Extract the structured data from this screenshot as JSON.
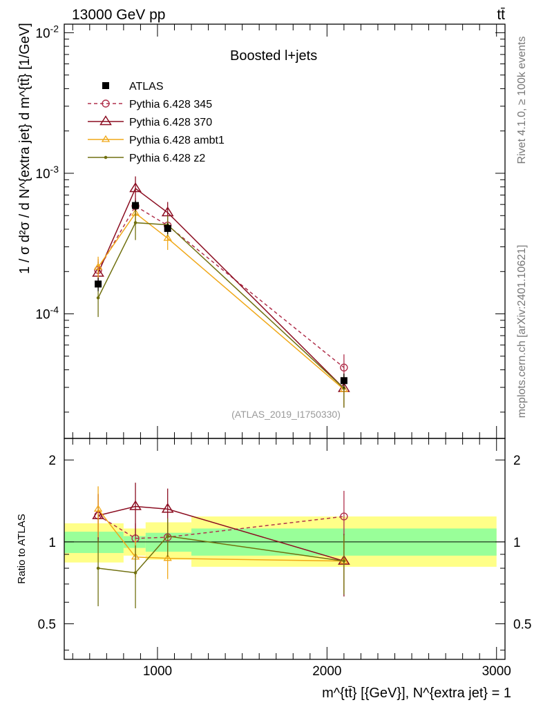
{
  "header": {
    "left_title": "13000 GeV pp",
    "right_title": "tt̄"
  },
  "side_labels": {
    "rivet": "Rivet 4.1.0, ≥ 100k events",
    "mcplots": "mcplots.cern.ch [arXiv:2401.10621]"
  },
  "chart_data": [
    {
      "type": "line",
      "panel": "main",
      "title": "Boosted l+jets",
      "analysis_label": "(ATLAS_2019_I1750330)",
      "ylabel": "1 / σ d²σ / d N^{extra jet} d m^{tt̄} [1/GeV]",
      "xlabel": "m^{tt̄} [{GeV}], N^{extra jet} = 1",
      "yscale": "log",
      "xlim": [
        450,
        3050
      ],
      "ylim": [
        1.3e-05,
        0.0115
      ],
      "yticks": [
        {
          "value": 0.0001,
          "label": "10^-4"
        },
        {
          "value": 0.001,
          "label": "10^-3"
        },
        {
          "value": 0.01,
          "label": "10^-2"
        }
      ],
      "data_points": {
        "name": "ATLAS",
        "x": [
          650,
          870,
          1060,
          2100
        ],
        "xerr_lo": [
          200,
          70,
          110,
          900
        ],
        "xerr_hi": [
          150,
          60,
          140,
          900
        ],
        "y": [
          0.000163,
          0.00059,
          0.000405,
          3.35e-05
        ],
        "yerr": [
          1.8e-05,
          5e-05,
          3.5e-05,
          4e-06
        ]
      },
      "series": [
        {
          "name": "Pythia 6.428 345",
          "color": "#b0304b",
          "dash": "5,4",
          "marker": "circle",
          "x": [
            650,
            870,
            1060,
            2100
          ],
          "y": [
            0.000205,
            0.000585,
            0.000425,
            4.15e-05
          ],
          "yerr": [
            4e-05,
            8e-05,
            6e-05,
            1e-05
          ]
        },
        {
          "name": "Pythia 6.428 370",
          "color": "#8b0d21",
          "dash": "",
          "marker": "triangle",
          "x": [
            650,
            870,
            1060,
            2100
          ],
          "y": [
            0.000195,
            0.00078,
            0.000525,
            2.95e-05
          ],
          "yerr": [
            4e-05,
            0.00017,
            0.0001,
            8e-06
          ]
        },
        {
          "name": "Pythia 6.428 ambt1",
          "color": "#f0a818",
          "dash": "",
          "marker": "triangle-small",
          "x": [
            650,
            870,
            1060,
            2100
          ],
          "y": [
            0.000215,
            0.00052,
            0.000345,
            2.9e-05
          ],
          "yerr": [
            4e-05,
            8e-05,
            6e-05,
            7e-06
          ]
        },
        {
          "name": "Pythia 6.428 z2",
          "color": "#707010",
          "dash": "",
          "marker": "dot",
          "x": [
            650,
            870,
            1060,
            2100
          ],
          "y": [
            0.00013,
            0.000445,
            0.00043,
            2.95e-05
          ],
          "yerr": [
            3.5e-05,
            0.00011,
            7e-05,
            8e-06
          ]
        }
      ]
    },
    {
      "type": "line",
      "panel": "ratio",
      "ylabel": "Ratio to ATLAS",
      "xlim": [
        450,
        3050
      ],
      "ylim": [
        0.37,
        2.4
      ],
      "yticks": [
        {
          "value": 0.5,
          "label": "0.5"
        },
        {
          "value": 1,
          "label": "1"
        },
        {
          "value": 2,
          "label": "2"
        }
      ],
      "xticks": [
        {
          "value": 1000,
          "label": "1000"
        },
        {
          "value": 2000,
          "label": "2000"
        },
        {
          "value": 3000,
          "label": "3000"
        }
      ],
      "bands": [
        {
          "x0": 450,
          "x1": 800,
          "yellow": [
            0.84,
            1.17
          ],
          "green": [
            0.91,
            1.09
          ]
        },
        {
          "x0": 800,
          "x1": 930,
          "yellow": [
            0.89,
            1.12
          ],
          "green": [
            0.95,
            1.05
          ]
        },
        {
          "x0": 930,
          "x1": 1200,
          "yellow": [
            0.86,
            1.18
          ],
          "green": [
            0.92,
            1.08
          ]
        },
        {
          "x0": 1200,
          "x1": 3000,
          "yellow": [
            0.81,
            1.24
          ],
          "green": [
            0.89,
            1.12
          ]
        }
      ],
      "series": [
        {
          "name": "Pythia 6.428 345",
          "x": [
            650,
            870,
            1060,
            2100
          ],
          "y": [
            1.25,
            1.03,
            1.04,
            1.24
          ],
          "yerr": [
            0.25,
            0.14,
            0.14,
            0.3
          ]
        },
        {
          "name": "Pythia 6.428 370",
          "x": [
            650,
            870,
            1060,
            2100
          ],
          "y": [
            1.25,
            1.35,
            1.32,
            0.85
          ],
          "yerr": [
            0.25,
            0.3,
            0.25,
            0.22
          ]
        },
        {
          "name": "Pythia 6.428 ambt1",
          "x": [
            650,
            870,
            1060,
            2100
          ],
          "y": [
            1.32,
            0.88,
            0.87,
            0.85
          ],
          "yerr": [
            0.28,
            0.14,
            0.14,
            0.2
          ]
        },
        {
          "name": "Pythia 6.428 z2",
          "x": [
            650,
            870,
            1060,
            2100
          ],
          "y": [
            0.8,
            0.77,
            1.05,
            0.85
          ],
          "yerr": [
            0.22,
            0.2,
            0.17,
            0.21
          ]
        }
      ]
    }
  ]
}
